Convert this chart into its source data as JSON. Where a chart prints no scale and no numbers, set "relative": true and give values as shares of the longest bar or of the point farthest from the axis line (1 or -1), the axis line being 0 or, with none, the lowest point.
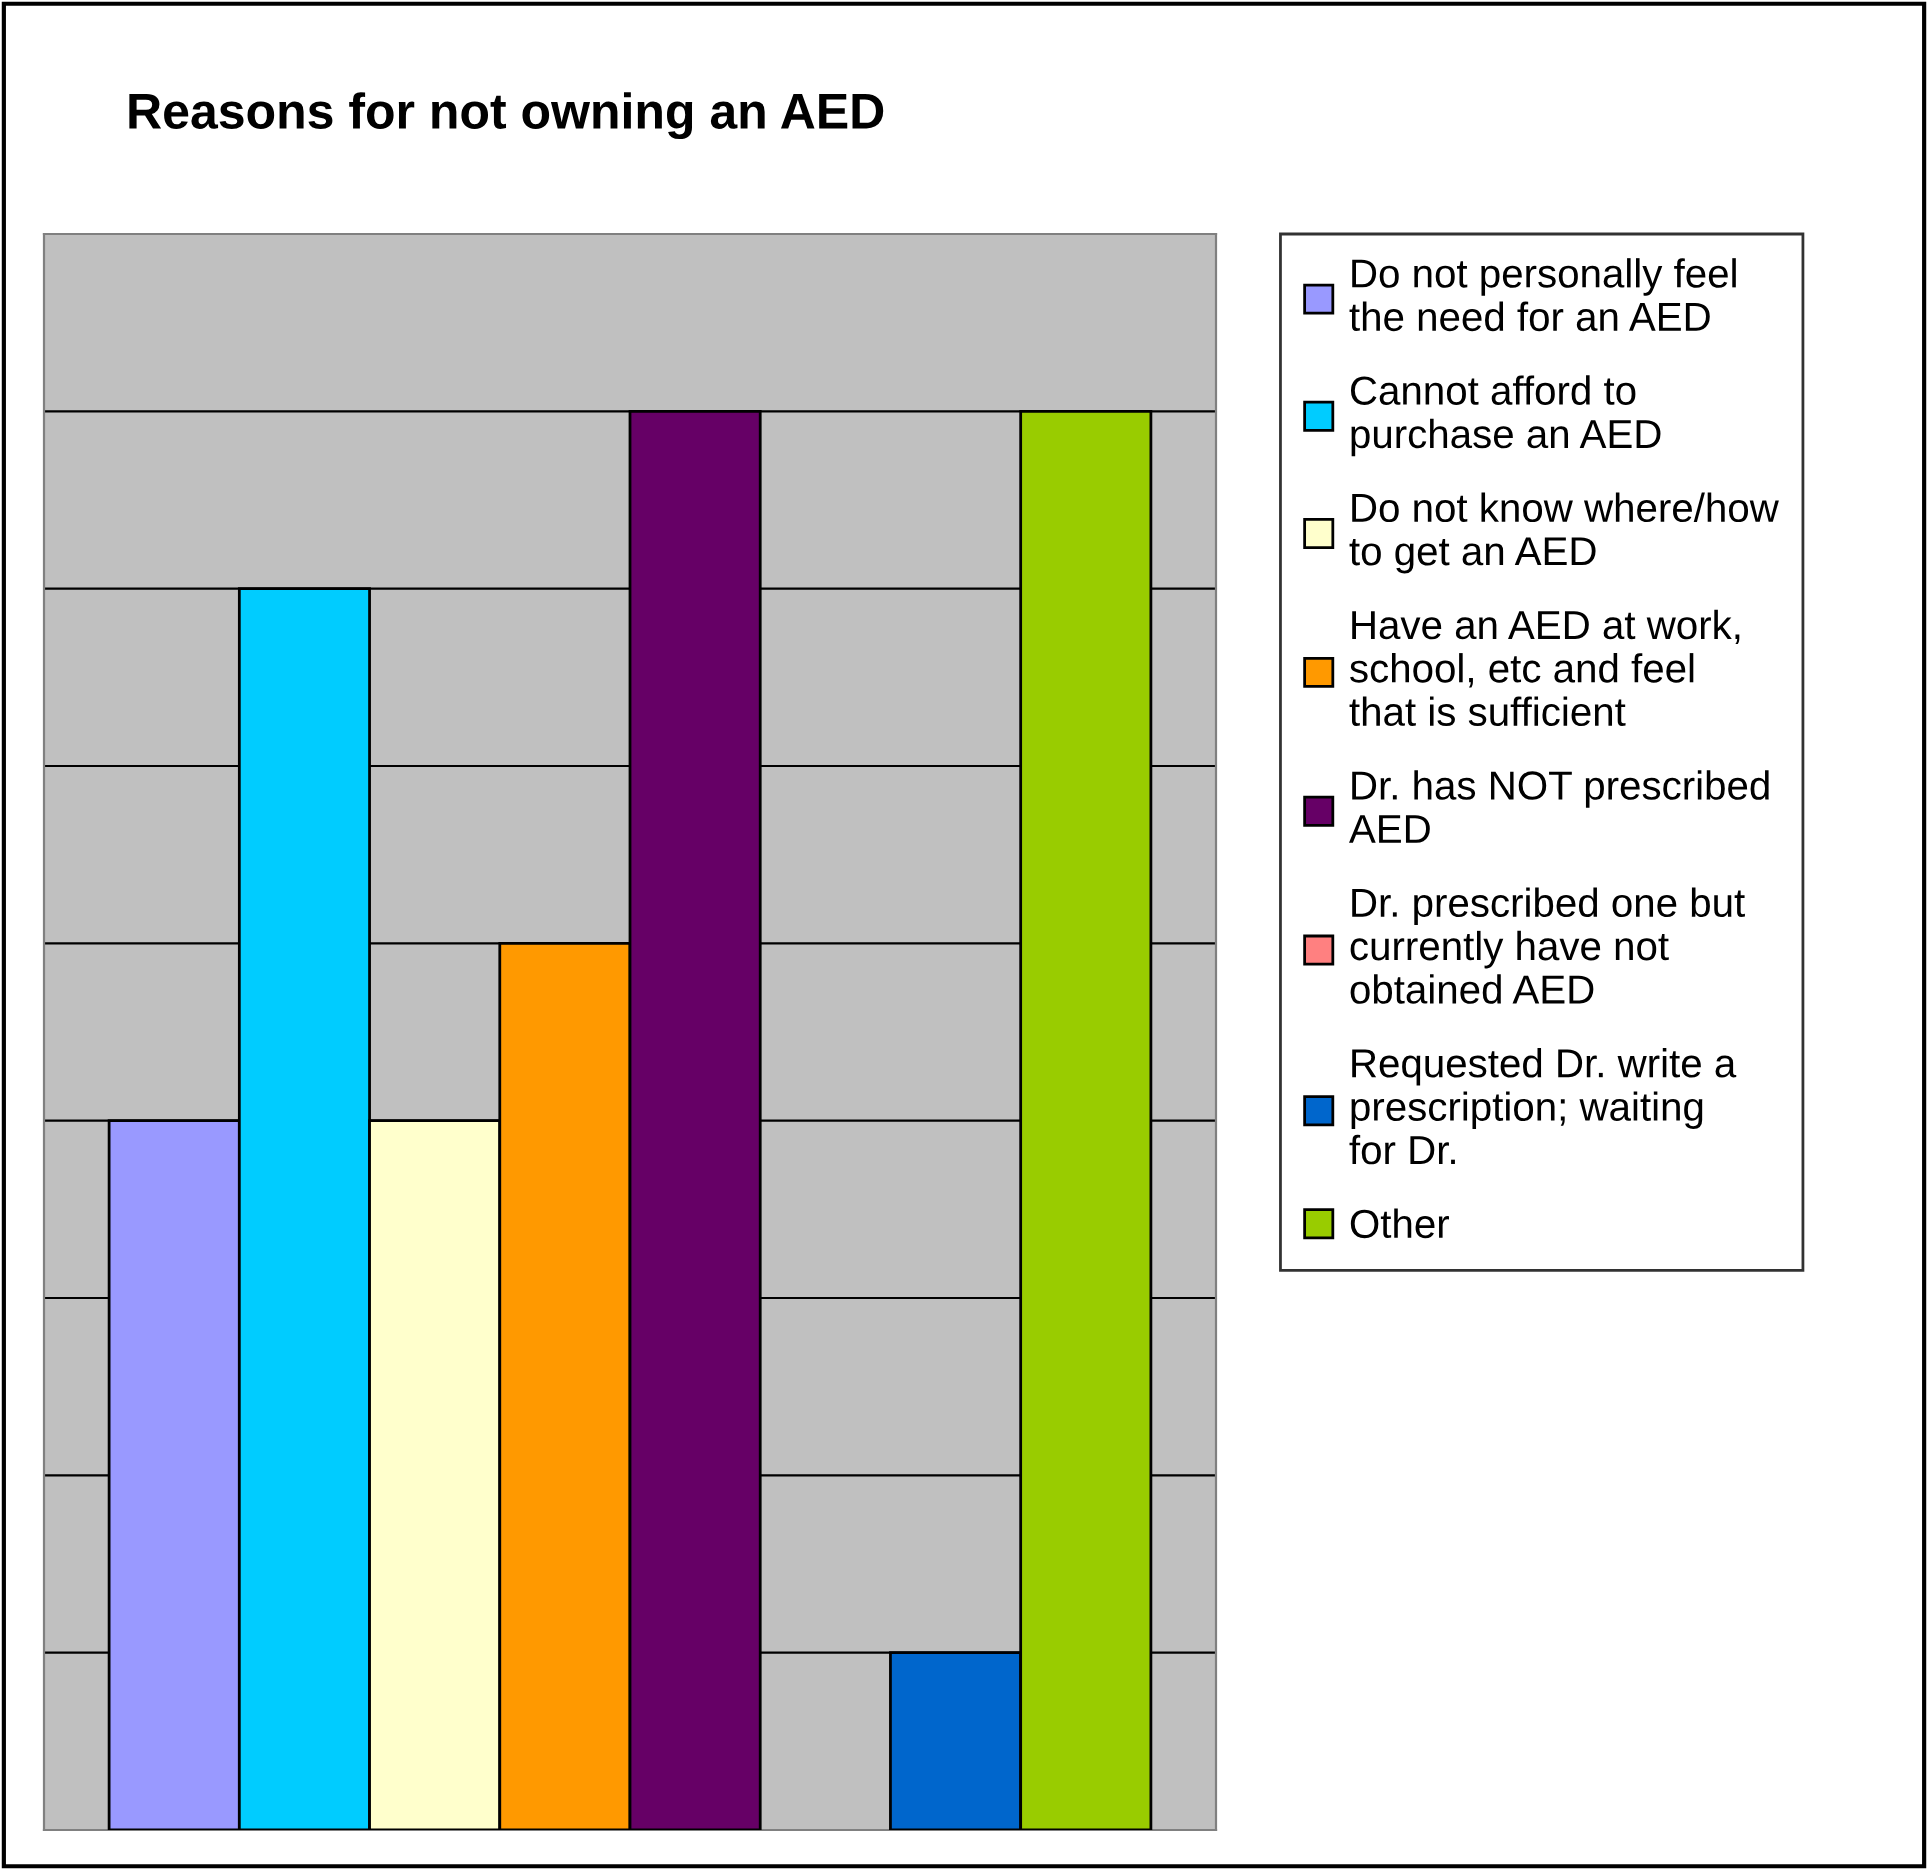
{
  "chart_data": {
    "type": "bar",
    "title": "Reasons for not owning an AED",
    "categories": [
      null
    ],
    "relative": true,
    "grid": "y",
    "legend": "right",
    "series": [
      {
        "name": "Do not personally feel the need for an AED",
        "color": "#9999ff",
        "values": [
          0.5
        ]
      },
      {
        "name": "Cannot afford to purchase an AED",
        "color": "#00ccff",
        "values": [
          0.875
        ]
      },
      {
        "name": "Do not know where/how to get an AED",
        "color": "#ffffcc",
        "values": [
          0.5
        ]
      },
      {
        "name": "Have an AED at work, school, etc and feel that is sufficient",
        "color": "#ff9900",
        "values": [
          0.625
        ]
      },
      {
        "name": "Dr. has NOT prescribed AED",
        "color": "#660066",
        "values": [
          1
        ]
      },
      {
        "name": "Dr. prescribed one but currently have not obtained AED",
        "color": "#ff8080",
        "values": [
          0
        ]
      },
      {
        "name": "Requested Dr. write a prescription; waiting for Dr.",
        "color": "#0066cc",
        "values": [
          0.125
        ]
      },
      {
        "name": "Other",
        "color": "#99cc00",
        "values": [
          1
        ]
      }
    ]
  }
}
